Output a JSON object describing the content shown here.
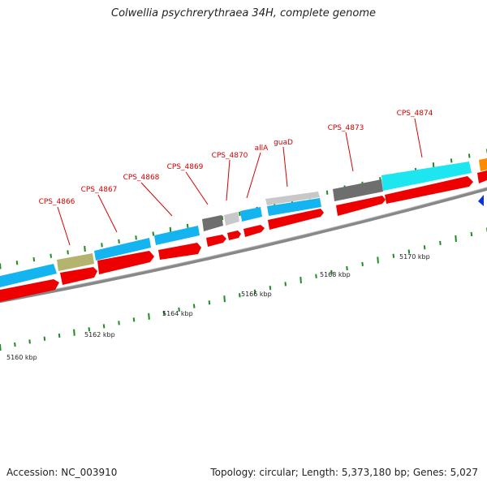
{
  "title": "Colwellia psychrerythraea 34H, complete genome",
  "accession_text": "Accession: NC_003910",
  "summary_text": "Topology: circular; Length: 5,373,180 bp; Genes: 5,027",
  "scale_labels": [
    "5160 kbp",
    "5162 kbp",
    "5164 kbp",
    "5166 kbp",
    "5168 kbp",
    "5170 kbp"
  ],
  "gene_labels": [
    "CPS_4866",
    "CPS_4867",
    "CPS_4868",
    "CPS_4869",
    "CPS_4870",
    "allA",
    "guaD",
    "CPS_4873",
    "CPS_4874"
  ],
  "colors": {
    "cds_red": "#ee0000",
    "blue": "#14b4f0",
    "olive": "#b4b46e",
    "dark_gray": "#6e6e6e",
    "light_gray": "#c8c8c8",
    "cyan": "#1ee6f0",
    "orange": "#ff8c00",
    "tick_green": "#1e8c1e",
    "backbone": "#888888",
    "label_red": "#d40000"
  }
}
